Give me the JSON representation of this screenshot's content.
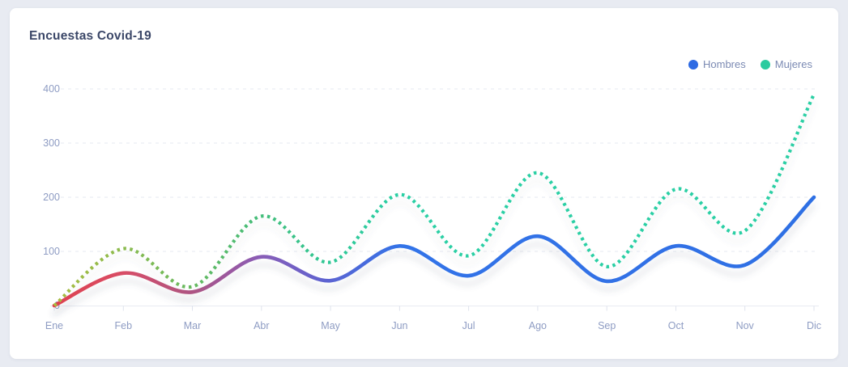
{
  "header": {
    "title": "Encuestas Covid-19"
  },
  "legend_items": [
    {
      "label": "Hombres",
      "color": "#2d6ae3"
    },
    {
      "label": "Mujeres",
      "color": "#2bcb9f"
    }
  ],
  "colors": {
    "page_background": "#e8ebf2",
    "card_background": "#ffffff",
    "title_text": "#3b4768",
    "axis_label_text": "#8e9cc3",
    "legend_text": "#7b8ab3",
    "gridline": "#e6e9f1",
    "axis_line": "#e8ebf2",
    "tick_mark": "#dfe3ed"
  },
  "chart_data": {
    "type": "line",
    "title": "Encuestas Covid-19",
    "categories": [
      "Ene",
      "Feb",
      "Mar",
      "Abr",
      "May",
      "Jun",
      "Jul",
      "Ago",
      "Sep",
      "Oct",
      "Nov",
      "Dic"
    ],
    "series": [
      {
        "name": "Hombres",
        "line_style": "solid",
        "values": [
          0,
          60,
          25,
          90,
          46,
          110,
          55,
          128,
          45,
          110,
          75,
          200
        ],
        "gradient_stops": [
          {
            "offset": "0%",
            "color": "#e2404f"
          },
          {
            "offset": "9%",
            "color": "#d84e66"
          },
          {
            "offset": "18%",
            "color": "#b05383"
          },
          {
            "offset": "27%",
            "color": "#8a5db6"
          },
          {
            "offset": "36%",
            "color": "#5d64d2"
          },
          {
            "offset": "46%",
            "color": "#3173e8"
          },
          {
            "offset": "100%",
            "color": "#2f6fe4"
          }
        ]
      },
      {
        "name": "Mujeres",
        "line_style": "dotted",
        "values": [
          0,
          105,
          35,
          165,
          80,
          205,
          92,
          245,
          72,
          215,
          138,
          390
        ],
        "gradient_stops": [
          {
            "offset": "0%",
            "color": "#a9bc41"
          },
          {
            "offset": "9%",
            "color": "#8cbb4f"
          },
          {
            "offset": "18%",
            "color": "#67b95f"
          },
          {
            "offset": "27%",
            "color": "#44bd79"
          },
          {
            "offset": "36%",
            "color": "#2fc795"
          },
          {
            "offset": "46%",
            "color": "#2bcfa4"
          },
          {
            "offset": "100%",
            "color": "#2bcfa4"
          }
        ]
      }
    ],
    "ylim": [
      0,
      400
    ],
    "yticks": [
      0,
      100,
      200,
      300,
      400
    ],
    "grid": "horizontal-dashed",
    "legend_position": "top-right"
  }
}
